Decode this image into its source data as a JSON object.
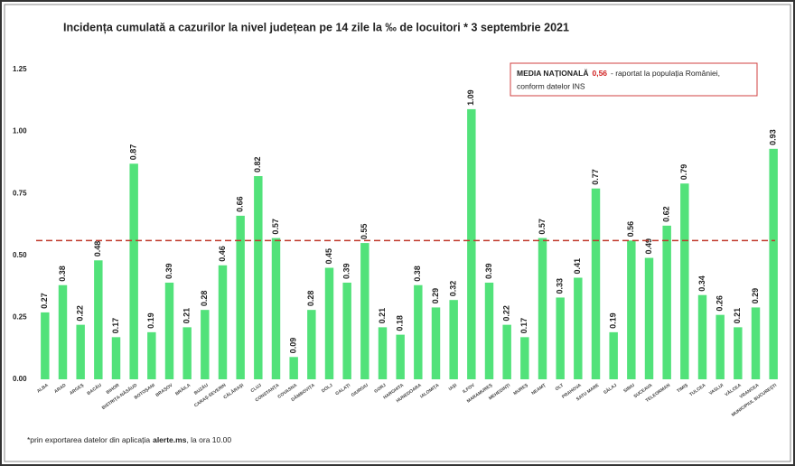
{
  "chart_data": {
    "type": "bar",
    "title": "Incidența cumulată a cazurilor la nivel județean pe 14 zile la ‰ de locuitori * 3 septembrie 2021",
    "categories": [
      "ALBA",
      "ARAD",
      "ARGEȘ",
      "BACĂU",
      "BIHOR",
      "BISTRIȚA-NĂSĂUD",
      "BOTOȘANI",
      "BRAȘOV",
      "BRĂILA",
      "BUZĂU",
      "CARAȘ-SEVERIN",
      "CĂLĂRAȘI",
      "CLUJ",
      "CONSTANȚA",
      "COVASNA",
      "DÂMBOVIȚA",
      "DOLJ",
      "GALAȚI",
      "GIURGIU",
      "GORJ",
      "HARGHITA",
      "HUNEDOARA",
      "IALOMIȚA",
      "IAȘI",
      "ILFOV",
      "MARAMUREȘ",
      "MEHEDINȚI",
      "MUREȘ",
      "NEAMȚ",
      "OLT",
      "PRAHOVA",
      "SATU MARE",
      "SĂLAJ",
      "SIBIU",
      "SUCEAVA",
      "TELEORMAN",
      "TIMIȘ",
      "TULCEA",
      "VASLUI",
      "VÂLCEA",
      "VRANCEA",
      "MUNICIPIUL BUCUREȘTI"
    ],
    "values": [
      0.27,
      0.38,
      0.22,
      0.48,
      0.17,
      0.87,
      0.19,
      0.39,
      0.21,
      0.28,
      0.46,
      0.66,
      0.82,
      0.57,
      0.09,
      0.28,
      0.45,
      0.39,
      0.55,
      0.21,
      0.18,
      0.38,
      0.29,
      0.32,
      1.09,
      0.39,
      0.22,
      0.17,
      0.57,
      0.33,
      0.41,
      0.77,
      0.19,
      0.56,
      0.49,
      0.62,
      0.79,
      0.34,
      0.26,
      0.21,
      0.29,
      0.93
    ],
    "color": "#52e27a",
    "ylim": [
      0,
      1.25
    ],
    "yticks": [
      {
        "value": 0,
        "label": "0.00"
      },
      0.25,
      {
        "value": 0.5,
        "label": "0.50"
      },
      0.75,
      {
        "value": 1,
        "label": "1.00"
      },
      1.25
    ],
    "grid": false,
    "reference_line": {
      "value": 0.56,
      "label": "0,56",
      "color": "#c0392b"
    },
    "annotation": {
      "heading": "MEDIA NAȚIONALĂ",
      "line1": "- raportat la populația României,",
      "line2": "conform datelor INS"
    },
    "footnote": {
      "prefix": "*prin exportarea datelor din aplicația",
      "app": "alerte.ms",
      "suffix": ", la ora 10.00"
    }
  }
}
